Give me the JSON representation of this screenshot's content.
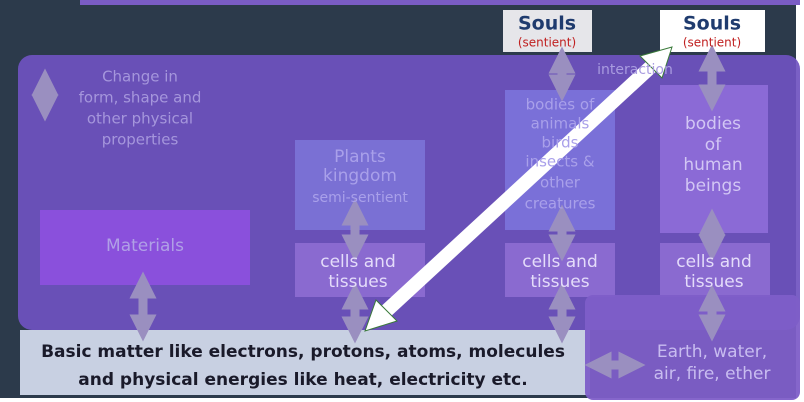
{
  "change_note": [
    "Change in",
    "form, shape and",
    "other physical",
    "properties"
  ],
  "materials": "Materials",
  "plants": {
    "title": [
      "Plants",
      "kingdom"
    ],
    "subtitle": "semi-sentient"
  },
  "souls": [
    {
      "title": "Souls",
      "subtitle": "(sentient)"
    },
    {
      "title": "Souls",
      "subtitle": "(sentient)"
    }
  ],
  "interaction": "interaction",
  "animals": [
    "bodies of",
    "animals",
    "birds",
    "insects &",
    "other",
    "creatures"
  ],
  "humans": [
    "bodies",
    "of",
    "human",
    "beings"
  ],
  "cells": [
    [
      "cells and",
      "tissues"
    ],
    [
      "cells and",
      "tissues"
    ],
    [
      "cells and",
      "tissues"
    ]
  ],
  "basic_matter": [
    "Basic matter like electrons, protons, atoms, molecules",
    "and physical energies like heat, electricity etc."
  ],
  "elements": [
    "Earth, water,",
    "air, fire, ether"
  ]
}
